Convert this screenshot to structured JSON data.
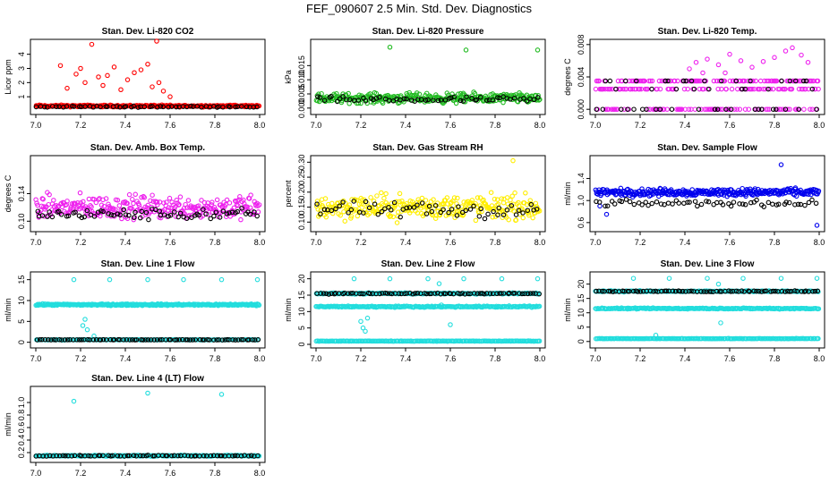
{
  "title": "FEF_090607  2.5 Min. Std. Dev. Diagnostics",
  "chart_data": [
    {
      "type": "scatter",
      "title": "Stan. Dev. Li-820 CO2",
      "ylabel": "Licor ppm",
      "xlim": [
        7.0,
        8.0
      ],
      "ylim": [
        0,
        4.8
      ],
      "xticks": [
        "7.0",
        "7.2",
        "7.4",
        "7.6",
        "7.8",
        "8.0"
      ],
      "yticks": [
        "1",
        "2",
        "3",
        "4"
      ],
      "ytick_values": [
        1,
        2,
        3,
        4
      ],
      "series": [
        {
          "name": "CO2 std dev (color)",
          "color": "#ff0000",
          "x_range": [
            7.0,
            8.0
          ],
          "base": 0.35,
          "spread": 0.1,
          "n": 260,
          "spikes": [
            [
              7.11,
              3.2
            ],
            [
              7.14,
              1.6
            ],
            [
              7.18,
              2.6
            ],
            [
              7.2,
              3.0
            ],
            [
              7.22,
              2.0
            ],
            [
              7.25,
              4.7
            ],
            [
              7.28,
              2.4
            ],
            [
              7.3,
              1.8
            ],
            [
              7.32,
              2.5
            ],
            [
              7.35,
              3.1
            ],
            [
              7.38,
              1.5
            ],
            [
              7.41,
              2.2
            ],
            [
              7.44,
              2.7
            ],
            [
              7.47,
              2.9
            ],
            [
              7.5,
              3.3
            ],
            [
              7.52,
              1.7
            ],
            [
              7.54,
              5.0
            ],
            [
              7.55,
              2.0
            ],
            [
              7.57,
              1.4
            ],
            [
              7.6,
              1.0
            ]
          ]
        },
        {
          "name": "CO2 std dev (black)",
          "color": "#000000",
          "x_range": [
            7.0,
            8.0
          ],
          "base": 0.3,
          "spread": 0.06,
          "n": 60
        }
      ]
    },
    {
      "type": "scatter",
      "title": "Stan. Dev. Li-820 Pressure",
      "ylabel": "kPa",
      "xlim": [
        7.0,
        8.0
      ],
      "ylim": [
        -0.001,
        0.023
      ],
      "xticks": [
        "7.0",
        "7.2",
        "7.4",
        "7.6",
        "7.8",
        "8.0"
      ],
      "yticks": [
        "0.000",
        "0.005",
        "0.010",
        "0.015"
      ],
      "ytick_values": [
        0.0,
        0.005,
        0.01,
        0.015
      ],
      "series": [
        {
          "name": "Pressure std dev (color)",
          "color": "#22bb22",
          "x_range": [
            7.0,
            8.0
          ],
          "base": 0.0035,
          "spread": 0.0025,
          "n": 320,
          "spikes": [
            [
              7.33,
              0.0215
            ],
            [
              7.67,
              0.0205
            ],
            [
              7.99,
              0.0205
            ]
          ]
        },
        {
          "name": "Pressure std dev (black)",
          "color": "#000000",
          "x_range": [
            7.0,
            8.0
          ],
          "base": 0.003,
          "spread": 0.0015,
          "n": 60
        }
      ]
    },
    {
      "type": "scatter",
      "title": "Stan. Dev. Li-820 Temp.",
      "ylabel": "degrees C",
      "xlim": [
        7.0,
        8.0
      ],
      "ylim": [
        -0.0002,
        0.0082
      ],
      "xticks": [
        "7.0",
        "7.2",
        "7.4",
        "7.6",
        "7.8",
        "8.0"
      ],
      "yticks": [
        "0.000",
        "0.004",
        "0.008"
      ],
      "ytick_values": [
        0.0,
        0.004,
        0.008
      ],
      "series": [
        {
          "name": "Temp std dev (color)",
          "color": "#ee22ee",
          "x_range": [
            7.0,
            8.0
          ],
          "levels": [
            0,
            0.0025,
            0.0035
          ],
          "n": 260,
          "extra": [
            [
              7.42,
              0.005
            ],
            [
              7.45,
              0.0058
            ],
            [
              7.5,
              0.0062
            ],
            [
              7.55,
              0.0055
            ],
            [
              7.6,
              0.0068
            ],
            [
              7.65,
              0.006
            ],
            [
              7.7,
              0.0052
            ],
            [
              7.75,
              0.0059
            ],
            [
              7.8,
              0.0064
            ],
            [
              7.85,
              0.0072
            ],
            [
              7.88,
              0.0076
            ],
            [
              7.92,
              0.0067
            ],
            [
              7.95,
              0.0058
            ],
            [
              7.48,
              0.0045
            ],
            [
              7.58,
              0.0045
            ]
          ]
        },
        {
          "name": "Temp std dev (black)",
          "color": "#000000",
          "x_range": [
            7.0,
            8.0
          ],
          "levels": [
            0,
            0.0025,
            0.0035
          ],
          "n": 50
        }
      ]
    },
    {
      "type": "scatter",
      "title": "Stan. Dev. Amb. Box Temp.",
      "ylabel": "degrees C",
      "xlim": [
        7.0,
        8.0
      ],
      "ylim": [
        0.09,
        0.19
      ],
      "xticks": [
        "7.0",
        "7.2",
        "7.4",
        "7.6",
        "7.8",
        "8.0"
      ],
      "yticks": [
        "0.10",
        "0.14"
      ],
      "ytick_values": [
        0.1,
        0.14
      ],
      "series": [
        {
          "name": "Box temp std dev (color)",
          "color": "#ee22ee",
          "x_range": [
            7.0,
            8.0
          ],
          "base": 0.12,
          "spread": 0.025,
          "n": 300
        },
        {
          "name": "Box temp std dev (black)",
          "color": "#000000",
          "x_range": [
            7.0,
            8.0
          ],
          "base": 0.11,
          "spread": 0.012,
          "n": 70
        }
      ]
    },
    {
      "type": "scatter",
      "title": "Stan. Dev. Gas Stream RH",
      "ylabel": "percent",
      "xlim": [
        7.0,
        8.0
      ],
      "ylim": [
        0.08,
        0.31
      ],
      "xticks": [
        "7.0",
        "7.2",
        "7.4",
        "7.6",
        "7.8",
        "8.0"
      ],
      "yticks": [
        "0.10",
        "0.15",
        "0.20",
        "0.25",
        "0.30"
      ],
      "ytick_values": [
        0.1,
        0.15,
        0.2,
        0.25,
        0.3
      ],
      "series": [
        {
          "name": "RH std dev (color)",
          "color": "#ffee00",
          "x_range": [
            7.0,
            8.0
          ],
          "base": 0.15,
          "spread": 0.06,
          "n": 300,
          "spikes": [
            [
              7.88,
              0.305
            ]
          ]
        },
        {
          "name": "RH std dev (black)",
          "color": "#000000",
          "x_range": [
            7.0,
            8.0
          ],
          "base": 0.14,
          "spread": 0.04,
          "n": 60
        }
      ]
    },
    {
      "type": "scatter",
      "title": "Stan. Dev. Sample Flow",
      "ylabel": "ml/min",
      "xlim": [
        7.0,
        8.0
      ],
      "ylim": [
        0.5,
        1.75
      ],
      "xticks": [
        "7.0",
        "7.2",
        "7.4",
        "7.6",
        "7.8",
        "8.0"
      ],
      "yticks": [
        "0.6",
        "1.0",
        "1.4"
      ],
      "ytick_values": [
        0.6,
        1.0,
        1.4
      ],
      "series": [
        {
          "name": "Sample flow std dev (color)",
          "color": "#0000ee",
          "x_range": [
            7.0,
            8.0
          ],
          "base": 1.15,
          "spread": 0.1,
          "n": 320,
          "spikes": [
            [
              7.83,
              1.65
            ],
            [
              7.99,
              0.55
            ],
            [
              7.02,
              0.9
            ],
            [
              7.05,
              0.75
            ]
          ]
        },
        {
          "name": "Sample flow std dev (black)",
          "color": "#000000",
          "x_range": [
            7.0,
            8.0
          ],
          "base": 0.95,
          "spread": 0.08,
          "n": 60
        }
      ]
    },
    {
      "type": "scatter",
      "title": "Stan. Dev. Line 1 Flow",
      "ylabel": "ml/min",
      "xlim": [
        7.0,
        8.0
      ],
      "ylim": [
        -0.5,
        16
      ],
      "xticks": [
        "7.0",
        "7.2",
        "7.4",
        "7.6",
        "7.8",
        "8.0"
      ],
      "yticks": [
        "0",
        "5",
        "10",
        "15"
      ],
      "ytick_values": [
        0,
        5,
        10,
        15
      ],
      "series": [
        {
          "name": "Line 1 flow std dev (color, high)",
          "color": "#22dddd",
          "x_range": [
            7.0,
            8.0
          ],
          "base": 9.0,
          "spread": 0.3,
          "n": 320,
          "spikes": [
            [
              7.17,
              15
            ],
            [
              7.33,
              15
            ],
            [
              7.5,
              15
            ],
            [
              7.66,
              15
            ],
            [
              7.83,
              15
            ],
            [
              7.99,
              15
            ],
            [
              7.21,
              4
            ],
            [
              7.22,
              5.5
            ],
            [
              7.23,
              3
            ],
            [
              7.26,
              1.5
            ]
          ]
        },
        {
          "name": "Line 1 flow std dev (color, low)",
          "color": "#22dddd",
          "x_range": [
            7.0,
            8.0
          ],
          "base": 0.6,
          "spread": 0.1,
          "n": 150
        },
        {
          "name": "Line 1 flow std dev (black)",
          "color": "#000000",
          "x_range": [
            7.0,
            8.0
          ],
          "base": 0.6,
          "spread": 0.08,
          "n": 80
        }
      ]
    },
    {
      "type": "scatter",
      "title": "Stan. Dev. Line 2 Flow",
      "ylabel": "ml/min",
      "xlim": [
        7.0,
        8.0
      ],
      "ylim": [
        0,
        21
      ],
      "xticks": [
        "7.0",
        "7.2",
        "7.4",
        "7.6",
        "7.8",
        "8.0"
      ],
      "yticks": [
        "0",
        "5",
        "10",
        "15",
        "20"
      ],
      "ytick_values": [
        0,
        5,
        10,
        15,
        20
      ],
      "series": [
        {
          "name": "Line 2 flow std dev (color, top)",
          "color": "#22dddd",
          "x_range": [
            7.0,
            8.0
          ],
          "base": 15.5,
          "spread": 0.3,
          "n": 200,
          "spikes": [
            [
              7.17,
              20
            ],
            [
              7.33,
              20
            ],
            [
              7.5,
              20
            ],
            [
              7.66,
              20
            ],
            [
              7.83,
              20
            ],
            [
              7.99,
              20
            ],
            [
              7.55,
              18.5
            ],
            [
              7.56,
              12
            ],
            [
              7.6,
              6
            ]
          ]
        },
        {
          "name": "Line 2 flow std dev (color, mid)",
          "color": "#22dddd",
          "x_range": [
            7.0,
            8.0
          ],
          "base": 11.5,
          "spread": 0.3,
          "n": 240,
          "spikes": [
            [
              7.2,
              7
            ],
            [
              7.21,
              5
            ],
            [
              7.22,
              4
            ],
            [
              7.23,
              8
            ]
          ]
        },
        {
          "name": "Line 2 flow std dev (color, low)",
          "color": "#22dddd",
          "x_range": [
            7.0,
            8.0
          ],
          "base": 1.0,
          "spread": 0.1,
          "n": 200
        },
        {
          "name": "Line 2 flow std dev (black)",
          "color": "#000000",
          "x_range": [
            7.0,
            8.0
          ],
          "base": 15.5,
          "spread": 0.25,
          "n": 80
        }
      ]
    },
    {
      "type": "scatter",
      "title": "Stan. Dev. Line 3 Flow",
      "ylabel": "ml/min",
      "xlim": [
        7.0,
        8.0
      ],
      "ylim": [
        -1,
        23
      ],
      "xticks": [
        "7.0",
        "7.2",
        "7.4",
        "7.6",
        "7.8",
        "8.0"
      ],
      "yticks": [
        "0",
        "5",
        "10",
        "15",
        "20"
      ],
      "ytick_values": [
        0,
        5,
        10,
        15,
        20
      ],
      "series": [
        {
          "name": "Line 3 flow std dev (color, top)",
          "color": "#22dddd",
          "x_range": [
            7.0,
            8.0
          ],
          "base": 17.5,
          "spread": 0.3,
          "n": 200,
          "spikes": [
            [
              7.17,
              22
            ],
            [
              7.33,
              22
            ],
            [
              7.5,
              22
            ],
            [
              7.66,
              22
            ],
            [
              7.83,
              22
            ],
            [
              7.99,
              22
            ],
            [
              7.55,
              20
            ],
            [
              7.56,
              6.5
            ]
          ]
        },
        {
          "name": "Line 3 flow std dev (color, mid)",
          "color": "#22dddd",
          "x_range": [
            7.0,
            8.0
          ],
          "base": 11.5,
          "spread": 0.3,
          "n": 240
        },
        {
          "name": "Line 3 flow std dev (color, low)",
          "color": "#22dddd",
          "x_range": [
            7.0,
            8.0
          ],
          "base": 1.0,
          "spread": 0.1,
          "n": 200,
          "spikes": [
            [
              7.27,
              2.2
            ]
          ]
        },
        {
          "name": "Line 3 flow std dev (black)",
          "color": "#000000",
          "x_range": [
            7.0,
            8.0
          ],
          "base": 17.5,
          "spread": 0.25,
          "n": 80
        }
      ]
    },
    {
      "type": "scatter",
      "title": "Stan. Dev. Line 4 (LT) Flow",
      "ylabel": "ml/min",
      "xlim": [
        7.0,
        8.0
      ],
      "ylim": [
        0.1,
        1.2
      ],
      "xticks": [
        "7.0",
        "7.2",
        "7.4",
        "7.6",
        "7.8",
        "8.0"
      ],
      "yticks": [
        "0.2",
        "0.4",
        "0.6",
        "0.8",
        "1.0"
      ],
      "ytick_values": [
        0.2,
        0.4,
        0.6,
        0.8,
        1.0
      ],
      "series": [
        {
          "name": "Line 4 flow std dev (color)",
          "color": "#22dddd",
          "x_range": [
            7.0,
            8.0
          ],
          "base": 0.15,
          "spread": 0.012,
          "n": 300,
          "spikes": [
            [
              7.17,
              1.02
            ],
            [
              7.5,
              1.15
            ],
            [
              7.83,
              1.13
            ]
          ]
        },
        {
          "name": "Line 4 flow std dev (black)",
          "color": "#000000",
          "x_range": [
            7.0,
            8.0
          ],
          "base": 0.15,
          "spread": 0.01,
          "n": 70
        }
      ]
    }
  ]
}
